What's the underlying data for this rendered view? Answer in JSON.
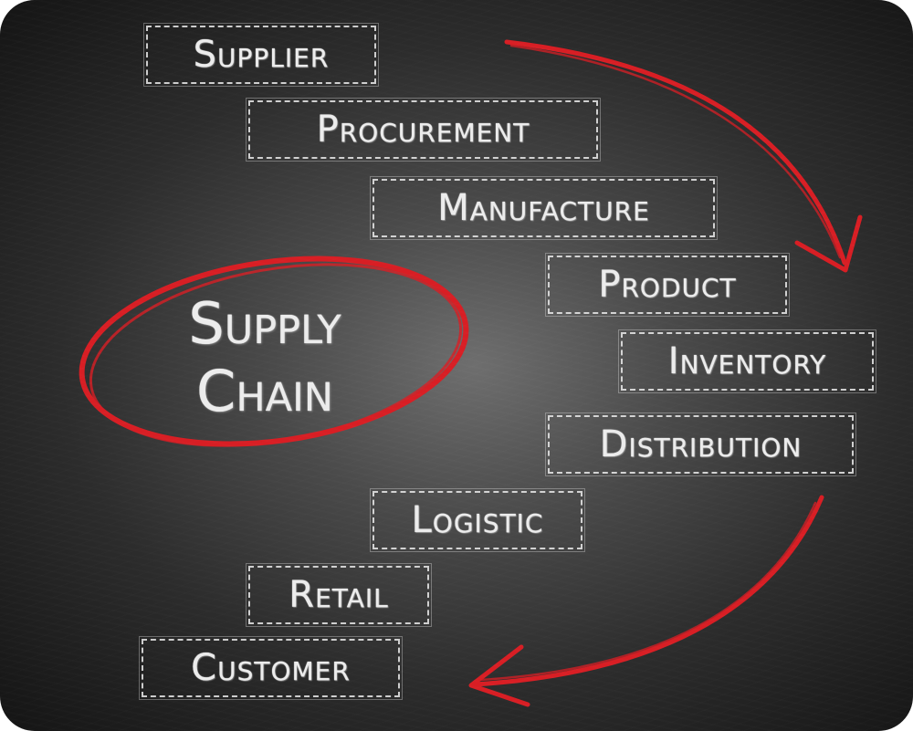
{
  "center_title": {
    "line1": "Supply",
    "line2": "Chain"
  },
  "steps": [
    {
      "label": "Supplier"
    },
    {
      "label": "Procurement"
    },
    {
      "label": "Manufacture"
    },
    {
      "label": "Product"
    },
    {
      "label": "Inventory"
    },
    {
      "label": "Distribution"
    },
    {
      "label": "Logistic"
    },
    {
      "label": "Retail"
    },
    {
      "label": "Customer"
    }
  ],
  "colors": {
    "chalk": "#ececec",
    "accent_red": "#d81e24",
    "board": "#2c2c2c"
  }
}
